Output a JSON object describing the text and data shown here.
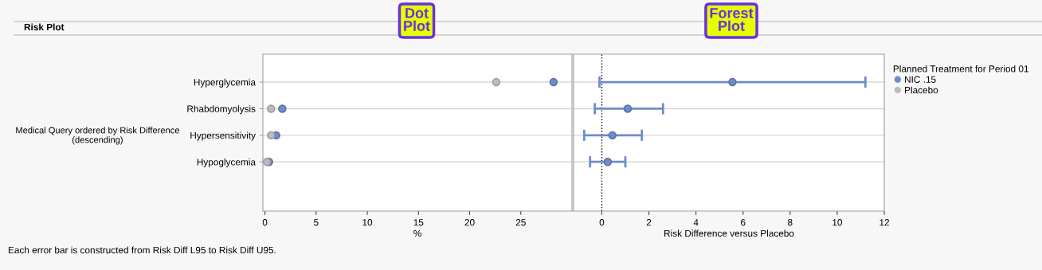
{
  "chart_data": [
    {
      "type": "scatter",
      "orientation": "horizontal",
      "xlabel": "%",
      "ylabel": "Medical Query ordered by Risk Difference\n(descending)",
      "legend_title": "Planned Treatment for Period 01",
      "legend": "right",
      "categories": [
        "Hyperglycemia",
        "Rhabdomyolysis",
        "Hypersensitivity",
        "Hypoglycemia"
      ],
      "series": [
        {
          "name": "NIC .15",
          "color": "#6f8ccb",
          "values": [
            28.2,
            1.7,
            1.1,
            0.4
          ]
        },
        {
          "name": "Placebo",
          "color": "#bcbcbc",
          "values": [
            22.6,
            0.6,
            0.6,
            0.2
          ]
        }
      ],
      "xlim": [
        -0.2,
        30
      ],
      "xticks": [
        0,
        5,
        10,
        15,
        20,
        25
      ],
      "grid": "y",
      "marker": "circle",
      "annotations": [
        "Dot Plot",
        "Risk Plot",
        "Each error bar is constructed from Risk Diff L95 to Risk Diff U95."
      ]
    },
    {
      "type": "scatter",
      "orientation": "horizontal",
      "xlabel": "Risk Difference versus Placebo",
      "tick_labels": "x",
      "categories": [
        null,
        null,
        null,
        null
      ],
      "series": [
        {
          "color": "#6f8ccb",
          "values": [
            5.55,
            1.1,
            0.45,
            0.25
          ],
          "errors": [
            [
              -0.1,
              11.2
            ],
            [
              -0.3,
              2.6
            ],
            [
              -0.75,
              1.7
            ],
            [
              -0.5,
              1.0
            ]
          ]
        }
      ],
      "xlim": [
        -1.2,
        12
      ],
      "xticks": [
        0,
        2,
        4,
        6,
        8,
        10,
        12
      ],
      "grid": "y",
      "marker": "circle",
      "ref_lines": [
        {
          "axis": "x",
          "value": 0,
          "color": "#000000",
          "line_style": "dotted"
        }
      ],
      "annotations": [
        "Forest Plot"
      ]
    }
  ]
}
